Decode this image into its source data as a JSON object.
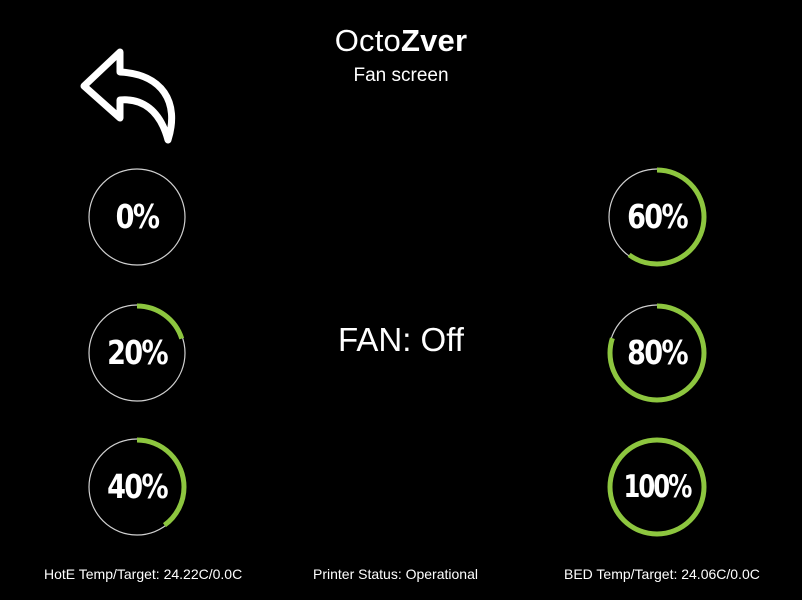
{
  "header": {
    "title_regular": "Octo",
    "title_bold": "Zver",
    "subtitle": "Fan screen"
  },
  "back": {
    "icon": "back-arrow-icon"
  },
  "colors": {
    "background": "#000000",
    "text": "#ffffff",
    "ring_track": "#d0d0d0",
    "ring_progress": "#8dc63f"
  },
  "fan_buttons": [
    {
      "label": "0%",
      "progress": 0
    },
    {
      "label": "20%",
      "progress": 0.2
    },
    {
      "label": "40%",
      "progress": 0.4
    },
    {
      "label": "60%",
      "progress": 0.6
    },
    {
      "label": "80%",
      "progress": 0.8
    },
    {
      "label": "100%",
      "progress": 1.0
    }
  ],
  "fan_status": "FAN: Off",
  "footer": {
    "hotend": "HotE Temp/Target: 24.22C/0.0C",
    "printer_status": "Printer Status: Operational",
    "bed": "BED Temp/Target: 24.06C/0.0C"
  }
}
